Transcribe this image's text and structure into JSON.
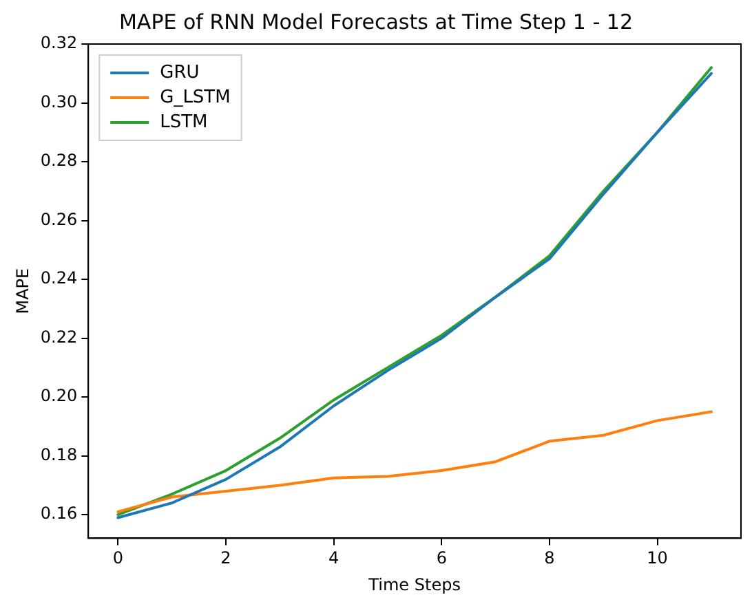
{
  "chart_data": {
    "type": "line",
    "title": "MAPE of RNN Model Forecasts at Time Step 1 - 12",
    "xlabel": "Time Steps",
    "ylabel": "MAPE",
    "x": [
      0,
      1,
      2,
      3,
      4,
      5,
      6,
      7,
      8,
      9,
      10,
      11
    ],
    "series": [
      {
        "name": "GRU",
        "color": "#1f77b4",
        "values": [
          0.159,
          0.164,
          0.172,
          0.183,
          0.197,
          0.209,
          0.22,
          0.234,
          0.247,
          0.269,
          0.29,
          0.31
        ]
      },
      {
        "name": "G_LSTM",
        "color": "#ff7f0e",
        "values": [
          0.161,
          0.166,
          0.168,
          0.17,
          0.1725,
          0.173,
          0.175,
          0.178,
          0.185,
          0.187,
          0.192,
          0.195
        ]
      },
      {
        "name": "LSTM",
        "color": "#2ca02c",
        "values": [
          0.16,
          0.167,
          0.175,
          0.186,
          0.199,
          0.21,
          0.221,
          0.234,
          0.248,
          0.27,
          0.29,
          0.312
        ]
      }
    ],
    "xlim": [
      -0.55,
      11.55
    ],
    "xticks": [
      0,
      2,
      4,
      6,
      8,
      10
    ],
    "ylim": [
      0.152,
      0.32
    ],
    "yticks": [
      {
        "value": 0.16,
        "label": "0.16"
      },
      {
        "value": 0.18,
        "label": "0.18"
      },
      {
        "value": 0.2,
        "label": "0.20"
      },
      {
        "value": 0.22,
        "label": "0.22"
      },
      {
        "value": 0.24,
        "label": "0.24"
      },
      {
        "value": 0.26,
        "label": "0.26"
      },
      {
        "value": 0.28,
        "label": "0.28"
      },
      {
        "value": 0.3,
        "label": "0.30"
      },
      {
        "value": 0.32,
        "label": "0.32"
      }
    ],
    "grid": false,
    "legend": "top left",
    "marker": "none",
    "line_style": "solid"
  }
}
